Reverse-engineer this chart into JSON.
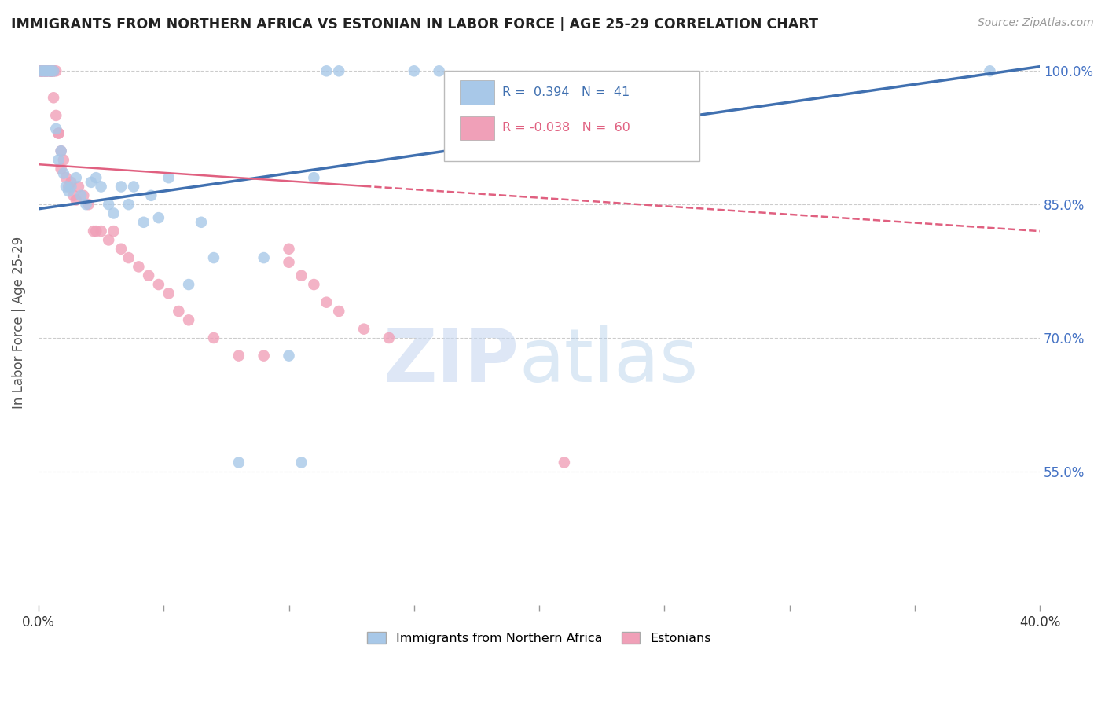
{
  "title": "IMMIGRANTS FROM NORTHERN AFRICA VS ESTONIAN IN LABOR FORCE | AGE 25-29 CORRELATION CHART",
  "source": "Source: ZipAtlas.com",
  "ylabel": "In Labor Force | Age 25-29",
  "xlim": [
    0.0,
    0.4
  ],
  "ylim": [
    0.4,
    1.035
  ],
  "xticks": [
    0.0,
    0.05,
    0.1,
    0.15,
    0.2,
    0.25,
    0.3,
    0.35,
    0.4
  ],
  "yticks": [
    0.55,
    0.7,
    0.85,
    1.0
  ],
  "ytick_labels": [
    "55.0%",
    "70.0%",
    "85.0%",
    "100.0%"
  ],
  "blue_R": 0.394,
  "blue_N": 41,
  "pink_R": -0.038,
  "pink_N": 60,
  "blue_color": "#a8c8e8",
  "pink_color": "#f0a0b8",
  "blue_line_color": "#4070b0",
  "pink_line_color": "#e06080",
  "legend_label_blue": "Immigrants from Northern Africa",
  "legend_label_pink": "Estonians",
  "blue_x": [
    0.001,
    0.002,
    0.003,
    0.004,
    0.005,
    0.006,
    0.007,
    0.008,
    0.009,
    0.01,
    0.011,
    0.012,
    0.013,
    0.015,
    0.017,
    0.019,
    0.021,
    0.023,
    0.025,
    0.028,
    0.03,
    0.033,
    0.036,
    0.038,
    0.042,
    0.045,
    0.048,
    0.052,
    0.06,
    0.065,
    0.07,
    0.08,
    0.09,
    0.1,
    0.105,
    0.11,
    0.115,
    0.12,
    0.15,
    0.16,
    0.38
  ],
  "blue_y": [
    1.0,
    1.0,
    1.0,
    1.0,
    1.0,
    1.0,
    0.935,
    0.9,
    0.91,
    0.885,
    0.87,
    0.865,
    0.87,
    0.88,
    0.86,
    0.85,
    0.875,
    0.88,
    0.87,
    0.85,
    0.84,
    0.87,
    0.85,
    0.87,
    0.83,
    0.86,
    0.835,
    0.88,
    0.76,
    0.83,
    0.79,
    0.56,
    0.79,
    0.68,
    0.56,
    0.88,
    1.0,
    1.0,
    1.0,
    1.0,
    1.0
  ],
  "pink_x": [
    0.001,
    0.001,
    0.001,
    0.001,
    0.002,
    0.002,
    0.002,
    0.003,
    0.003,
    0.003,
    0.004,
    0.004,
    0.005,
    0.005,
    0.005,
    0.005,
    0.005,
    0.006,
    0.006,
    0.006,
    0.007,
    0.007,
    0.008,
    0.008,
    0.009,
    0.009,
    0.01,
    0.011,
    0.012,
    0.013,
    0.014,
    0.015,
    0.016,
    0.018,
    0.02,
    0.022,
    0.023,
    0.025,
    0.028,
    0.03,
    0.033,
    0.036,
    0.04,
    0.044,
    0.048,
    0.052,
    0.056,
    0.06,
    0.07,
    0.08,
    0.09,
    0.1,
    0.1,
    0.105,
    0.11,
    0.115,
    0.12,
    0.13,
    0.14,
    0.21
  ],
  "pink_y": [
    1.0,
    1.0,
    1.0,
    1.0,
    1.0,
    1.0,
    1.0,
    1.0,
    1.0,
    1.0,
    1.0,
    1.0,
    1.0,
    1.0,
    1.0,
    1.0,
    1.0,
    1.0,
    1.0,
    0.97,
    1.0,
    0.95,
    0.93,
    0.93,
    0.91,
    0.89,
    0.9,
    0.88,
    0.87,
    0.875,
    0.86,
    0.855,
    0.87,
    0.86,
    0.85,
    0.82,
    0.82,
    0.82,
    0.81,
    0.82,
    0.8,
    0.79,
    0.78,
    0.77,
    0.76,
    0.75,
    0.73,
    0.72,
    0.7,
    0.68,
    0.68,
    0.785,
    0.8,
    0.77,
    0.76,
    0.74,
    0.73,
    0.71,
    0.7,
    0.56
  ],
  "watermark_zip": "ZIP",
  "watermark_atlas": "atlas",
  "background_color": "#ffffff",
  "grid_color": "#cccccc",
  "blue_trend_x0": 0.0,
  "blue_trend_y0": 0.845,
  "blue_trend_x1": 0.4,
  "blue_trend_y1": 1.005,
  "pink_trend_x0": 0.0,
  "pink_trend_y0": 0.895,
  "pink_trend_x1": 0.4,
  "pink_trend_y1": 0.82
}
